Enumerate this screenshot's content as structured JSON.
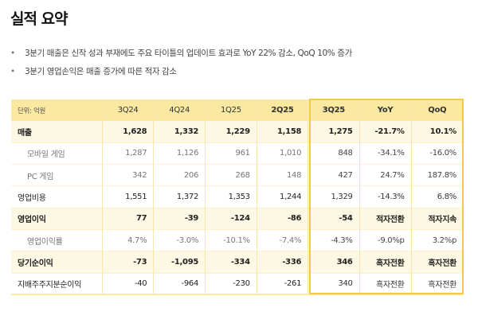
{
  "title": "실적 요약",
  "bullets": [
    "3분기 매출은 신작 성과 부재에도 주요 타이틀의 업데이트 효과로 YoY 22% 감소, QoQ 10% 증가",
    "3분기 영업손익은 매출 증가에 따른 적자 감소"
  ],
  "table": {
    "unit": "단위: 억원",
    "columns": [
      "3Q24",
      "4Q24",
      "1Q25",
      "2Q25",
      "3Q25",
      "YoY",
      "QoQ"
    ],
    "rows": [
      {
        "label": "매출",
        "values": [
          "1,628",
          "1,332",
          "1,229",
          "1,158",
          "1,275",
          "-21.7%",
          "10.1%"
        ]
      },
      {
        "label": "모바일 게임",
        "values": [
          "1,287",
          "1,126",
          "961",
          "1,010",
          "848",
          "-34.1%",
          "-16.0%"
        ]
      },
      {
        "label": "PC 게임",
        "values": [
          "342",
          "206",
          "268",
          "148",
          "427",
          "24.7%",
          "187.8%"
        ]
      },
      {
        "label": "영업비용",
        "values": [
          "1,551",
          "1,372",
          "1,353",
          "1,244",
          "1,329",
          "-14.3%",
          "6.8%"
        ]
      },
      {
        "label": "영업이익",
        "values": [
          "77",
          "-39",
          "-124",
          "-86",
          "-54",
          "적자전환",
          "적자지속"
        ]
      },
      {
        "label": "영업이익률",
        "values": [
          "4.7%",
          "-3.0%",
          "-10.1%",
          "-7.4%",
          "-4.3%",
          "-9.0%p",
          "3.2%p"
        ]
      },
      {
        "label": "당기순이익",
        "values": [
          "-73",
          "-1,095",
          "-334",
          "-336",
          "346",
          "흑자전환",
          "흑자전환"
        ]
      },
      {
        "label": "지배주주지분순이익",
        "values": [
          "-40",
          "-964",
          "-230",
          "-261",
          "340",
          "흑자전환",
          "흑자전환"
        ]
      }
    ]
  },
  "colors": {
    "header": "#fbe9a2",
    "highlight": "#f3c94b",
    "bold_row": "#fdf8e3"
  }
}
